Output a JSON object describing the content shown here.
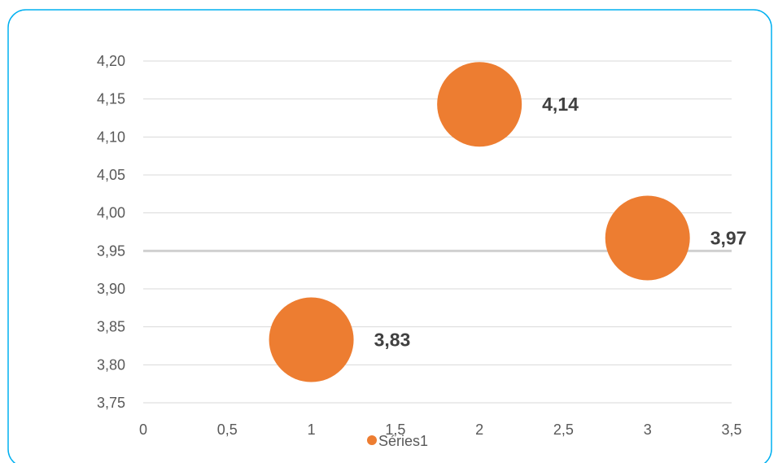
{
  "chart_data": {
    "type": "scatter",
    "title": "",
    "xlabel": "",
    "ylabel": "",
    "xlim": [
      0,
      3.5
    ],
    "ylim": [
      3.75,
      4.2
    ],
    "x_ticks": [
      "0",
      "0,5",
      "1",
      "1,5",
      "2",
      "2,5",
      "3",
      "3,5"
    ],
    "x_tick_values": [
      0,
      0.5,
      1,
      1.5,
      2,
      2.5,
      3,
      3.5
    ],
    "y_ticks": [
      "3,75",
      "3,80",
      "3,85",
      "3,90",
      "3,95",
      "4,00",
      "4,05",
      "4,10",
      "4,15",
      "4,20"
    ],
    "y_tick_values": [
      3.75,
      3.8,
      3.85,
      3.9,
      3.95,
      4.0,
      4.05,
      4.1,
      4.15,
      4.2
    ],
    "grid": true,
    "reference_line_y": 3.95,
    "legend_position": "bottom",
    "series": [
      {
        "name": "Séries1",
        "color": "#ed7d31",
        "points": [
          {
            "x": 1,
            "y": 3.833,
            "label": "3,83"
          },
          {
            "x": 2,
            "y": 4.143,
            "label": "4,14"
          },
          {
            "x": 3,
            "y": 3.967,
            "label": "3,97"
          }
        ]
      }
    ]
  },
  "colors": {
    "frame_border": "#00b0f0",
    "reference_line": "#d0d0d0",
    "grid": "#d9d9d9"
  }
}
